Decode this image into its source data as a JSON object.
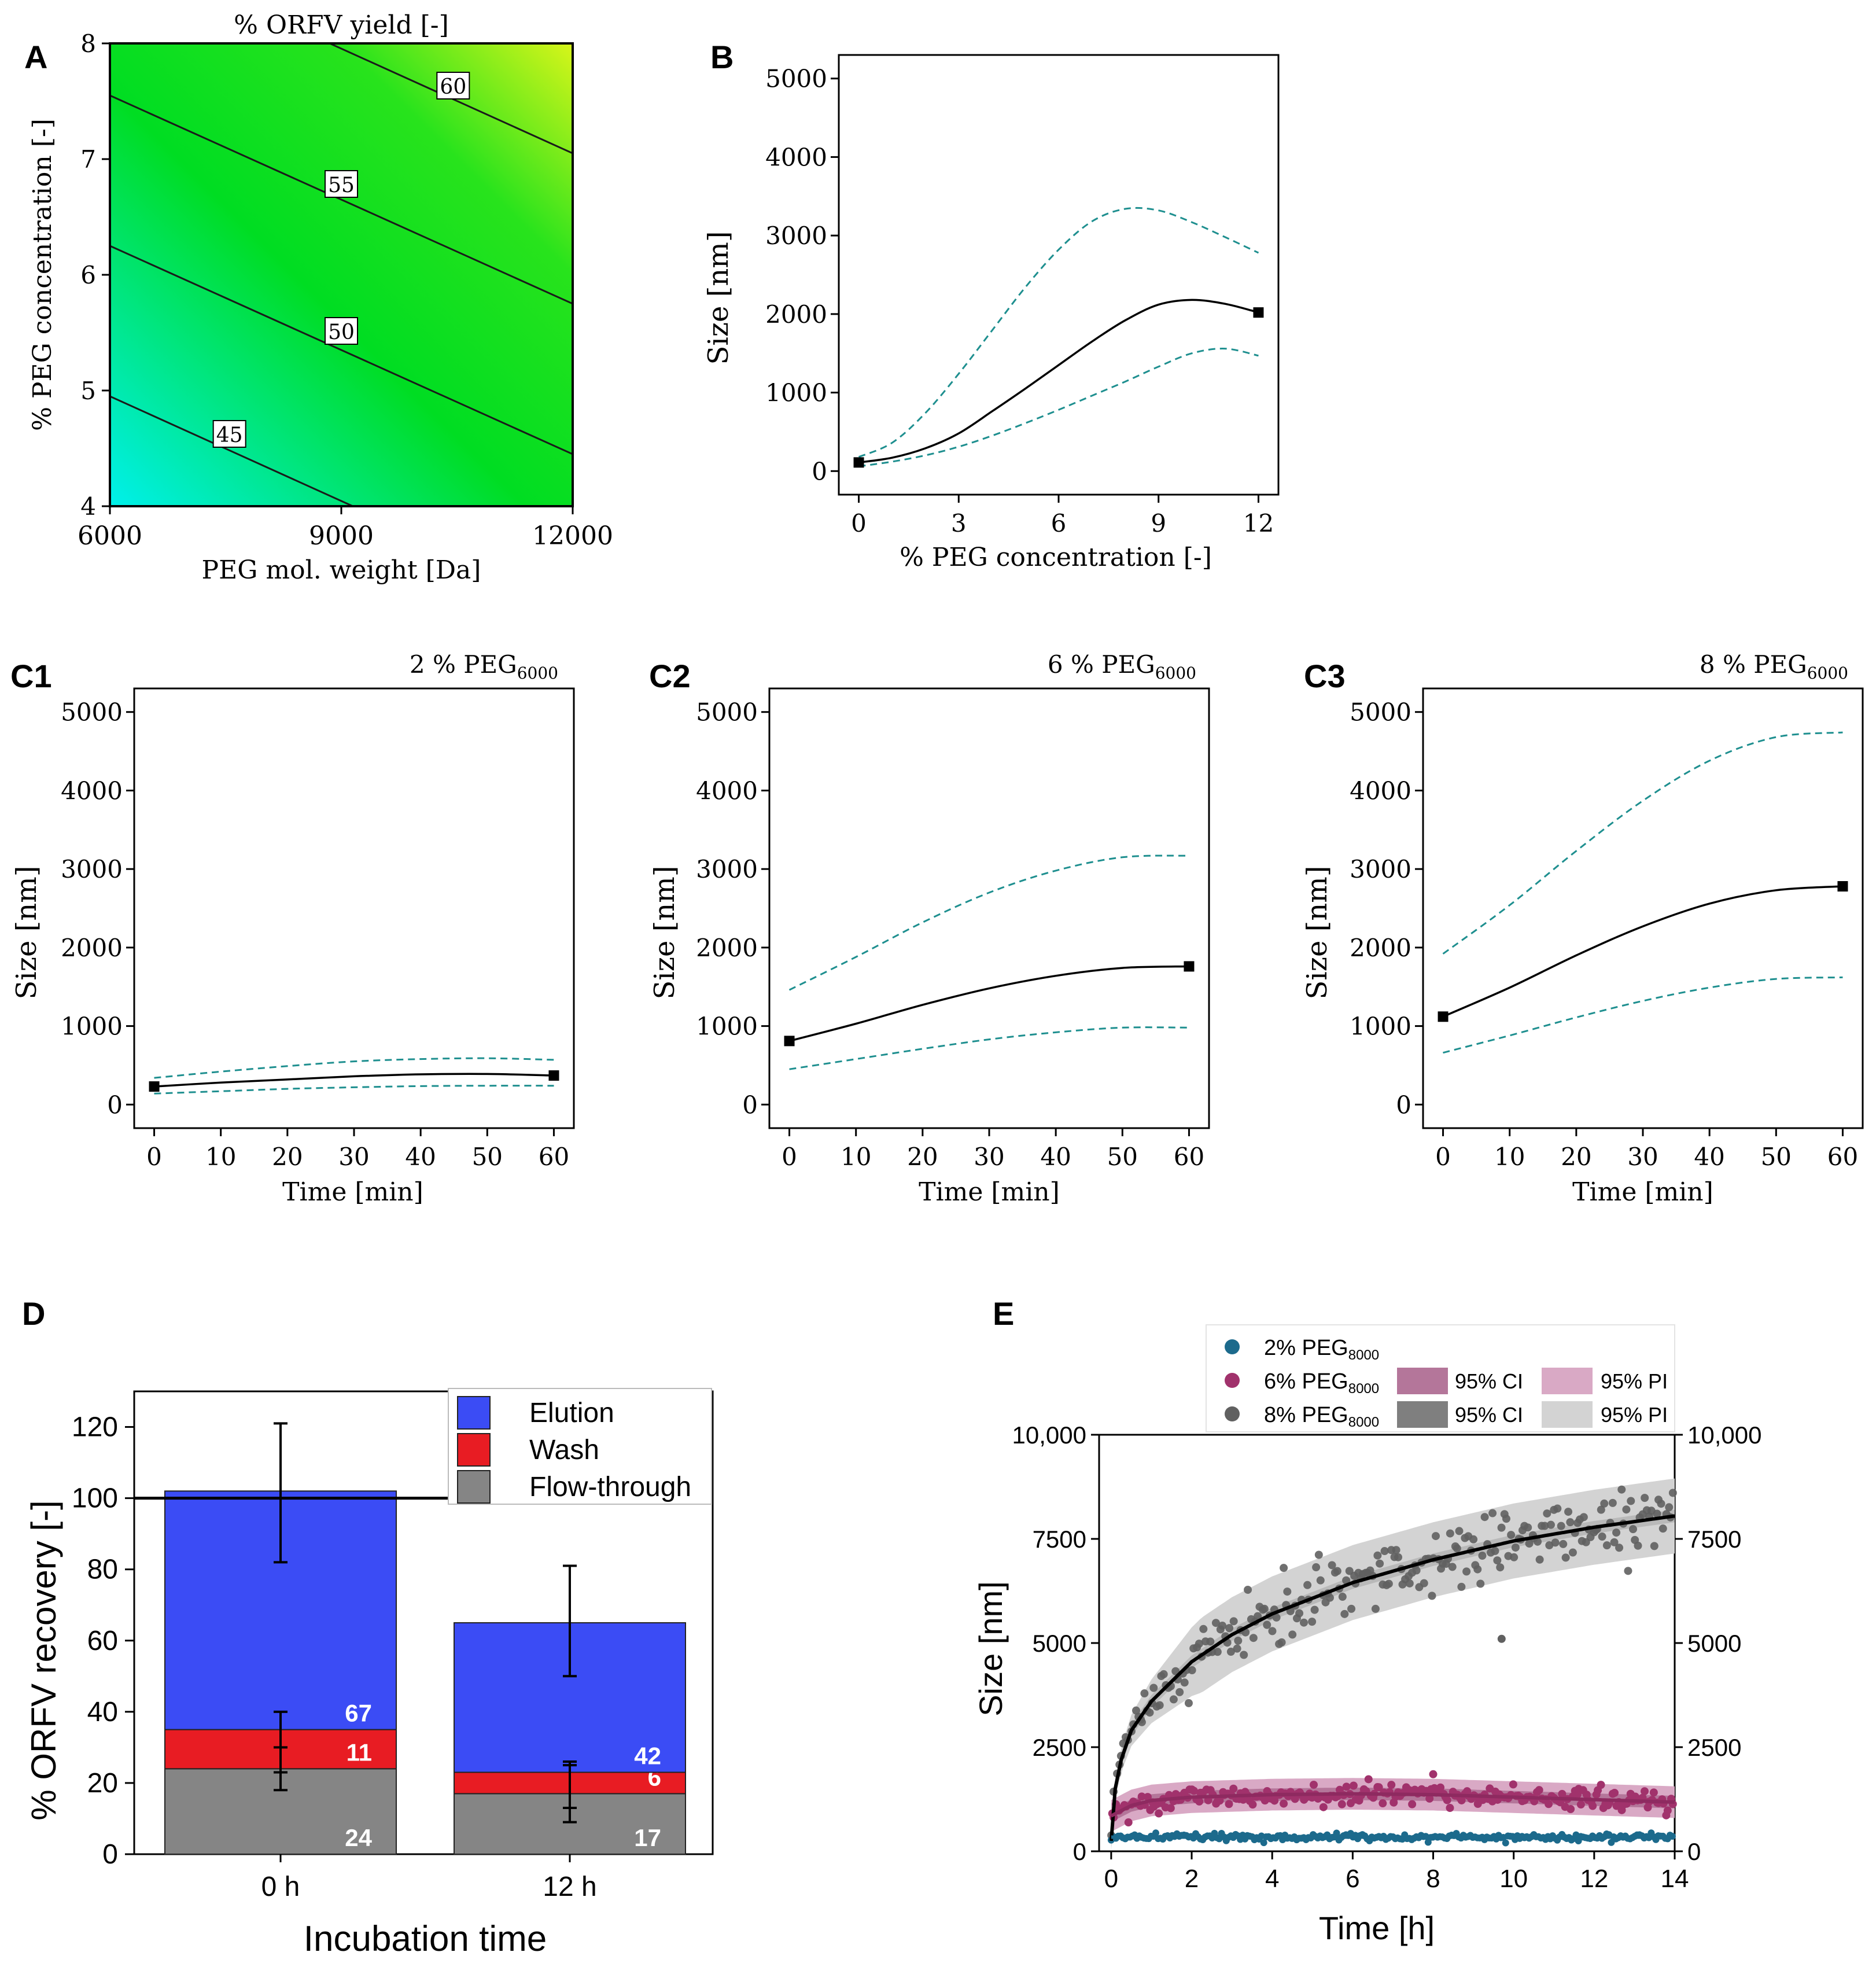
{
  "colors": {
    "contour_low": "#00f0ec",
    "contour_mid": "#00dd22",
    "contour_high": "#d8f51a",
    "teal_dash": "#1e8f8f",
    "elution": "#3b4cf5",
    "wash": "#e81c23",
    "flow_through": "#858585",
    "peg2": "#1c6a8c",
    "peg6": "#a1326c",
    "peg8": "#606060",
    "ci6": "#b4769a",
    "pi6": "#d9a9c5",
    "ci8": "#7f7f7f",
    "pi8": "#d3d3d3"
  },
  "chart_data": [
    {
      "panel": "A",
      "type": "contour",
      "title": "% ORFV yield [-]",
      "xlabel": "PEG mol. weight [Da]",
      "ylabel": "% PEG concentration [-]",
      "xlim": [
        6000,
        12000
      ],
      "ylim": [
        4,
        8
      ],
      "xticks": [
        "6000",
        "9000",
        "12000"
      ],
      "yticks": [
        "4",
        "5",
        "6",
        "7",
        "8"
      ],
      "contours": [
        {
          "level": "45",
          "label": "45",
          "points": [
            [
              6000,
              4.95
            ],
            [
              9150,
              4.0
            ]
          ]
        },
        {
          "level": "50",
          "label": "50",
          "points": [
            [
              6000,
              6.25
            ],
            [
              12000,
              4.45
            ]
          ]
        },
        {
          "level": "55",
          "label": "55",
          "points": [
            [
              6000,
              7.55
            ],
            [
              12000,
              5.75
            ]
          ]
        },
        {
          "level": "60",
          "label": "60",
          "points": [
            [
              8850,
              8.0
            ],
            [
              12000,
              7.05
            ]
          ]
        }
      ],
      "label_positions": {
        "45": [
          7550,
          4.62
        ],
        "50": [
          9000,
          5.51
        ],
        "55": [
          9000,
          6.78
        ],
        "60": [
          10450,
          7.63
        ]
      }
    },
    {
      "panel": "B",
      "type": "line",
      "xlabel": "% PEG concentration [-]",
      "ylabel": "Size [nm]",
      "xlim": [
        -0.6,
        12.6
      ],
      "ylim": [
        -300,
        5300
      ],
      "xticks": [
        "0",
        "3",
        "6",
        "9",
        "12"
      ],
      "yticks": [
        "0",
        "1000",
        "2000",
        "3000",
        "4000",
        "5000"
      ],
      "series": [
        {
          "name": "fit",
          "style": "solid",
          "x": [
            0,
            1,
            2,
            3,
            4,
            5,
            6,
            7,
            8,
            9,
            10,
            11,
            12
          ],
          "y": [
            110,
            170,
            290,
            480,
            760,
            1050,
            1350,
            1650,
            1920,
            2120,
            2180,
            2130,
            2020
          ]
        },
        {
          "name": "upper bound",
          "style": "dashed",
          "x": [
            0,
            1,
            2,
            3,
            4,
            5,
            6,
            7,
            8,
            9,
            10,
            11,
            12
          ],
          "y": [
            180,
            360,
            740,
            1240,
            1790,
            2340,
            2820,
            3180,
            3340,
            3320,
            3170,
            2980,
            2780
          ]
        },
        {
          "name": "lower bound",
          "style": "dashed",
          "x": [
            0,
            1,
            2,
            3,
            4,
            5,
            6,
            7,
            8,
            9,
            10,
            11,
            12
          ],
          "y": [
            60,
            120,
            200,
            310,
            450,
            610,
            780,
            960,
            1140,
            1330,
            1500,
            1560,
            1470
          ]
        }
      ],
      "markers": [
        [
          0,
          110
        ],
        [
          12,
          2020
        ]
      ]
    },
    {
      "panel": "C1",
      "type": "line",
      "title": "2 % PEG",
      "title_sub": "6000",
      "xlabel": "Time [min]",
      "ylabel": "Size [nm]",
      "xlim": [
        -3,
        63
      ],
      "ylim": [
        -300,
        5300
      ],
      "xticks": [
        "0",
        "10",
        "20",
        "30",
        "40",
        "50",
        "60"
      ],
      "yticks": [
        "0",
        "1000",
        "2000",
        "3000",
        "4000",
        "5000"
      ],
      "series": [
        {
          "name": "fit",
          "style": "solid",
          "x": [
            0,
            10,
            20,
            30,
            40,
            50,
            60
          ],
          "y": [
            230,
            280,
            320,
            360,
            385,
            390,
            370
          ]
        },
        {
          "name": "upper bound",
          "style": "dashed",
          "x": [
            0,
            10,
            20,
            30,
            40,
            50,
            60
          ],
          "y": [
            340,
            420,
            490,
            550,
            580,
            590,
            570
          ]
        },
        {
          "name": "lower bound",
          "style": "dashed",
          "x": [
            0,
            10,
            20,
            30,
            40,
            50,
            60
          ],
          "y": [
            140,
            170,
            200,
            220,
            235,
            240,
            240
          ]
        }
      ],
      "markers": [
        [
          0,
          230
        ],
        [
          60,
          370
        ]
      ]
    },
    {
      "panel": "C2",
      "type": "line",
      "title": "6 % PEG",
      "title_sub": "6000",
      "xlabel": "Time [min]",
      "ylabel": "Size [nm]",
      "xlim": [
        -3,
        63
      ],
      "ylim": [
        -300,
        5300
      ],
      "xticks": [
        "0",
        "10",
        "20",
        "30",
        "40",
        "50",
        "60"
      ],
      "yticks": [
        "0",
        "1000",
        "2000",
        "3000",
        "4000",
        "5000"
      ],
      "series": [
        {
          "name": "fit",
          "style": "solid",
          "x": [
            0,
            10,
            20,
            30,
            40,
            50,
            60
          ],
          "y": [
            810,
            1030,
            1270,
            1480,
            1640,
            1740,
            1760
          ]
        },
        {
          "name": "upper bound",
          "style": "dashed",
          "x": [
            0,
            10,
            20,
            30,
            40,
            50,
            60
          ],
          "y": [
            1460,
            1880,
            2320,
            2700,
            2980,
            3150,
            3170
          ]
        },
        {
          "name": "lower bound",
          "style": "dashed",
          "x": [
            0,
            10,
            20,
            30,
            40,
            50,
            60
          ],
          "y": [
            450,
            580,
            710,
            830,
            920,
            980,
            980
          ]
        }
      ],
      "markers": [
        [
          0,
          810
        ],
        [
          60,
          1760
        ]
      ]
    },
    {
      "panel": "C3",
      "type": "line",
      "title": "8 % PEG",
      "title_sub": "6000",
      "xlabel": "Time [min]",
      "ylabel": "Size [nm]",
      "xlim": [
        -3,
        63
      ],
      "ylim": [
        -300,
        5300
      ],
      "xticks": [
        "0",
        "10",
        "20",
        "30",
        "40",
        "50",
        "60"
      ],
      "yticks": [
        "0",
        "1000",
        "2000",
        "3000",
        "4000",
        "5000"
      ],
      "series": [
        {
          "name": "fit",
          "style": "solid",
          "x": [
            0,
            10,
            20,
            30,
            40,
            50,
            60
          ],
          "y": [
            1120,
            1490,
            1900,
            2270,
            2560,
            2730,
            2780
          ]
        },
        {
          "name": "upper bound",
          "style": "dashed",
          "x": [
            0,
            10,
            20,
            30,
            40,
            50,
            60
          ],
          "y": [
            1920,
            2540,
            3230,
            3870,
            4380,
            4680,
            4740
          ]
        },
        {
          "name": "lower bound",
          "style": "dashed",
          "x": [
            0,
            10,
            20,
            30,
            40,
            50,
            60
          ],
          "y": [
            660,
            880,
            1110,
            1320,
            1490,
            1600,
            1620
          ]
        }
      ],
      "markers": [
        [
          0,
          1120
        ],
        [
          60,
          2780
        ]
      ]
    },
    {
      "panel": "D",
      "type": "bar",
      "stacked": true,
      "xlabel": "Incubation time",
      "ylabel": "% ORFV recovery [-]",
      "ylim": [
        0,
        130
      ],
      "yticks": [
        "0",
        "20",
        "40",
        "60",
        "80",
        "100",
        "120"
      ],
      "reference_line": 100,
      "categories": [
        "0 h",
        "12 h"
      ],
      "series": [
        {
          "name": "Flow-through",
          "values": [
            24,
            17
          ],
          "labels": [
            "24",
            "17"
          ],
          "error": [
            [
              18,
              30
            ],
            [
              9,
              25
            ]
          ]
        },
        {
          "name": "Wash",
          "values": [
            11,
            6
          ],
          "labels": [
            "11",
            "6"
          ],
          "error": [
            [
              23,
              40
            ],
            [
              13,
              26
            ]
          ]
        },
        {
          "name": "Elution",
          "values": [
            67,
            42
          ],
          "labels": [
            "67",
            "42"
          ],
          "error": [
            [
              82,
              121
            ],
            [
              50,
              81
            ]
          ]
        }
      ],
      "legend": [
        "Elution",
        "Wash",
        "Flow-through"
      ],
      "legend_position": "top-right"
    },
    {
      "panel": "E",
      "type": "scatter",
      "xlabel": "Time [h]",
      "ylabel": "Size [nm]",
      "xlim": [
        -0.3,
        14
      ],
      "ylim": [
        0,
        10000
      ],
      "xticks": [
        "0",
        "2",
        "4",
        "6",
        "8",
        "10",
        "12",
        "14"
      ],
      "yticks": [
        "0",
        "2500",
        "5000",
        "7500",
        "10,000"
      ],
      "right_yticks": [
        "0",
        "2500",
        "5000",
        "7500",
        "10,000"
      ],
      "legend": {
        "entries": [
          {
            "label": "2% PEG",
            "sub": "8000"
          },
          {
            "label": "6% PEG",
            "sub": "8000"
          },
          {
            "label": "8% PEG",
            "sub": "8000"
          }
        ],
        "ci_label": "95% CI",
        "pi_label": "95% PI"
      },
      "series": [
        {
          "name": "2% PEG8000",
          "fit": [
            [
              0,
              340
            ],
            [
              14,
              340
            ]
          ],
          "points_from": 0,
          "points_to": 14,
          "approx_level": 340,
          "noise": 40
        },
        {
          "name": "6% PEG8000",
          "fit": [
            [
              0,
              850
            ],
            [
              0.5,
              1100
            ],
            [
              1,
              1220
            ],
            [
              2,
              1300
            ],
            [
              4,
              1360
            ],
            [
              6,
              1380
            ],
            [
              8,
              1360
            ],
            [
              10,
              1300
            ],
            [
              12,
              1240
            ],
            [
              14,
              1180
            ]
          ],
          "ci_halfwidth": 150,
          "pi_halfwidth": 380,
          "noise": 130
        },
        {
          "name": "8% PEG8000",
          "fit": [
            [
              0,
              250
            ],
            [
              0.1,
              1500
            ],
            [
              0.25,
              2200
            ],
            [
              0.5,
              2900
            ],
            [
              1,
              3600
            ],
            [
              2,
              4550
            ],
            [
              3,
              5200
            ],
            [
              4,
              5700
            ],
            [
              6,
              6450
            ],
            [
              8,
              7000
            ],
            [
              10,
              7450
            ],
            [
              12,
              7780
            ],
            [
              14,
              8050
            ]
          ],
          "ci_halfwidth": 150,
          "pi_halfwidth": 900,
          "noise": 420
        }
      ],
      "outliers": [
        [
          9.7,
          5100
        ],
        [
          8.0,
          1850
        ]
      ]
    }
  ],
  "panel_labels": [
    "A",
    "B",
    "C1",
    "C2",
    "C3",
    "D",
    "E"
  ]
}
